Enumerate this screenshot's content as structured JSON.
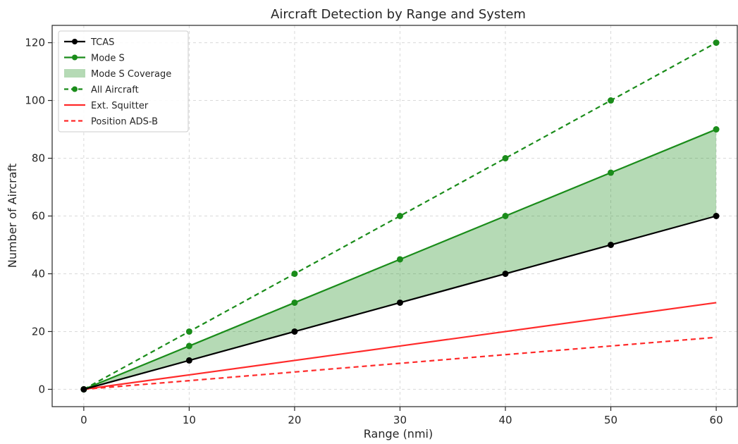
{
  "chart_data": {
    "type": "line",
    "title": "Aircraft Detection by Range and System",
    "xlabel": "Range (nmi)",
    "ylabel": "Number of Aircraft",
    "x": [
      0,
      10,
      20,
      30,
      40,
      50,
      60
    ],
    "xlim": [
      -3,
      62
    ],
    "ylim": [
      -6,
      126
    ],
    "xticks": [
      0,
      10,
      20,
      30,
      40,
      50,
      60
    ],
    "yticks": [
      0,
      20,
      40,
      60,
      80,
      100,
      120
    ],
    "grid": true,
    "legend_position": "top-left",
    "series": [
      {
        "name": "TCAS",
        "values": [
          0,
          10,
          20,
          30,
          40,
          50,
          60
        ],
        "color": "#000000",
        "style": "solid",
        "markers": true
      },
      {
        "name": "Mode S",
        "values": [
          0,
          15,
          30,
          45,
          60,
          75,
          90
        ],
        "color": "#1a8c1a",
        "style": "solid",
        "markers": true
      },
      {
        "name": "All Aircraft",
        "values": [
          0,
          20,
          40,
          60,
          80,
          100,
          120
        ],
        "color": "#1a8c1a",
        "style": "dashed",
        "markers": true
      },
      {
        "name": "Ext. Squitter",
        "values": [
          0,
          5,
          10,
          15,
          20,
          25,
          30
        ],
        "color": "#ff2a2a",
        "style": "solid",
        "markers": false
      },
      {
        "name": "Position ADS-B",
        "values": [
          0,
          3,
          6,
          9,
          12,
          15,
          18
        ],
        "color": "#ff2a2a",
        "style": "dashed",
        "markers": false
      }
    ],
    "fill_between": {
      "name": "Mode S Coverage",
      "lower": "TCAS",
      "upper": "Mode S",
      "color": "#1a8c1a",
      "opacity": 0.32
    },
    "legend_order": [
      "TCAS",
      "Mode S",
      "Mode S Coverage",
      "All Aircraft",
      "Ext. Squitter",
      "Position ADS-B"
    ]
  }
}
